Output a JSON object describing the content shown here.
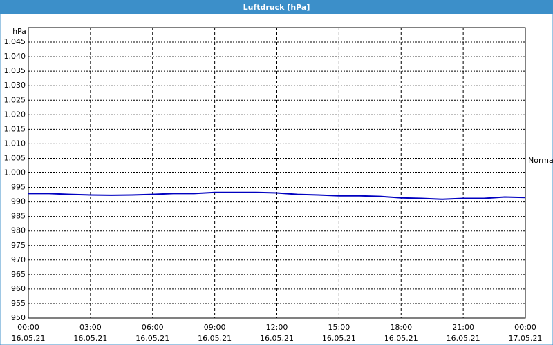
{
  "chart_data": {
    "type": "line",
    "title": "Luftdruck [hPa]",
    "y_unit": "hPa",
    "annotation": "Normal",
    "x": [
      0,
      1,
      2,
      3,
      4,
      5,
      6,
      7,
      8,
      9,
      10,
      11,
      12,
      13,
      14,
      15,
      16,
      17,
      18,
      19,
      20,
      21,
      22,
      23,
      24
    ],
    "series": [
      {
        "name": "Luftdruck",
        "color": "#0000c0",
        "values": [
          992.9,
          992.9,
          992.6,
          992.4,
          992.3,
          992.4,
          992.6,
          992.9,
          992.9,
          993.3,
          993.3,
          993.3,
          993.1,
          992.6,
          992.4,
          992.1,
          992.1,
          991.9,
          991.4,
          991.2,
          990.9,
          991.2,
          991.2,
          991.7,
          991.5
        ]
      }
    ],
    "xlim": [
      0,
      24
    ],
    "xticks": [
      {
        "value": 0,
        "label": "00:00",
        "sublabel": "16.05.21"
      },
      {
        "value": 3,
        "label": "03:00",
        "sublabel": "16.05.21"
      },
      {
        "value": 6,
        "label": "06:00",
        "sublabel": "16.05.21"
      },
      {
        "value": 9,
        "label": "09:00",
        "sublabel": "16.05.21"
      },
      {
        "value": 12,
        "label": "12:00",
        "sublabel": "16.05.21"
      },
      {
        "value": 15,
        "label": "15:00",
        "sublabel": "16.05.21"
      },
      {
        "value": 18,
        "label": "18:00",
        "sublabel": "16.05.21"
      },
      {
        "value": 21,
        "label": "21:00",
        "sublabel": "16.05.21"
      },
      {
        "value": 24,
        "label": "00:00",
        "sublabel": "17.05.21"
      }
    ],
    "ylim": [
      950,
      1050
    ],
    "yticks": [
      950,
      955,
      960,
      965,
      970,
      975,
      980,
      985,
      990,
      995,
      {
        "value": 1000,
        "label": "1.000"
      },
      {
        "value": 1005,
        "label": "1.005"
      },
      {
        "value": 1010,
        "label": "1.010"
      },
      {
        "value": 1015,
        "label": "1.015"
      },
      {
        "value": 1020,
        "label": "1.020"
      },
      {
        "value": 1025,
        "label": "1.025"
      },
      {
        "value": 1030,
        "label": "1.030"
      },
      {
        "value": 1035,
        "label": "1.035"
      },
      {
        "value": 1040,
        "label": "1.040"
      },
      {
        "value": 1045,
        "label": "1.045"
      }
    ],
    "grid": true
  }
}
